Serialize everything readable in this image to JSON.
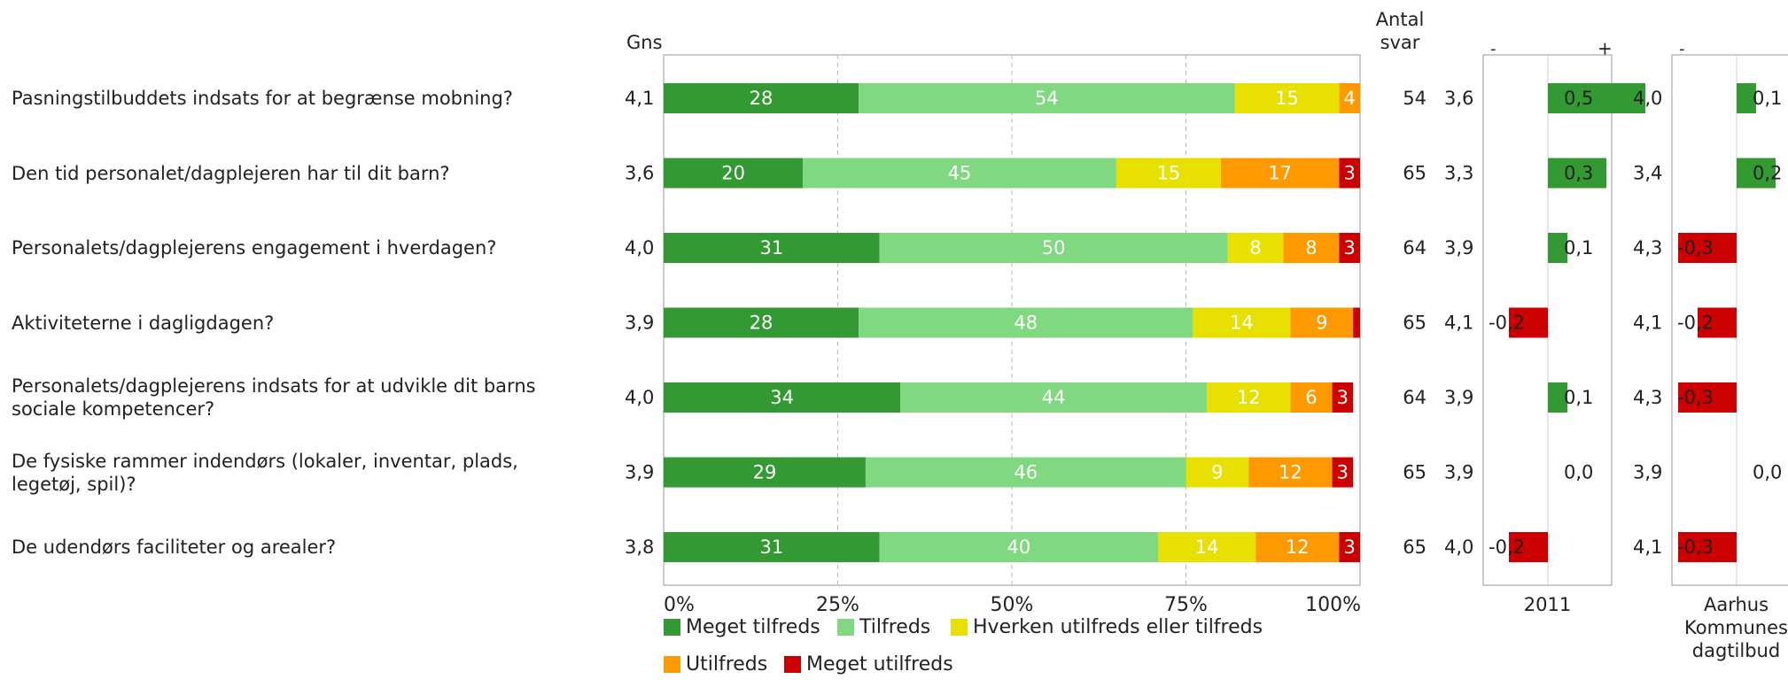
{
  "header": {
    "mean_label": "Gns",
    "count_label_1": "Antal",
    "count_label_2": "svar"
  },
  "questions": [
    "Pasningstilbuddets indsats for at begrænse mobning?",
    "Den tid personalet/dagplejeren har til dit barn?",
    "Personalets/dagplejerens engagement i hverdagen?",
    "Aktiviteterne i dagligdagen?",
    "Personalets/dagplejerens indsats for at udvikle dit barns sociale kompetencer?",
    "De fysiske rammer indendørs (lokaler, inventar, plads, legetøj, spil)?",
    "De udendørs faciliteter og arealer?"
  ],
  "chart_data": {
    "type": "bar",
    "stacked": true,
    "orientation": "horizontal",
    "categories": [
      "Pasningstilbuddets indsats for at begrænse mobning?",
      "Den tid personalet/dagplejeren har til dit barn?",
      "Personalets/dagplejerens engagement i hverdagen?",
      "Aktiviteterne i dagligdagen?",
      "Personalets/dagplejerens indsats for at udvikle dit barns sociale kompetencer?",
      "De fysiske rammer indendørs (lokaler, inventar, plads, legetøj, spil)?",
      "De udendørs faciliteter og arealer?"
    ],
    "series": [
      {
        "name": "Meget tilfreds",
        "color": "#339933",
        "values": [
          28,
          20,
          31,
          28,
          34,
          29,
          31
        ]
      },
      {
        "name": "Tilfreds",
        "color": "#80d880",
        "values": [
          54,
          45,
          50,
          48,
          44,
          46,
          40
        ]
      },
      {
        "name": "Hverken utilfreds eller tilfreds",
        "color": "#e8e000",
        "values": [
          15,
          15,
          8,
          14,
          12,
          9,
          14
        ]
      },
      {
        "name": "Utilfreds",
        "color": "#ff9900",
        "values": [
          4,
          17,
          8,
          9,
          6,
          12,
          12
        ]
      },
      {
        "name": "Meget utilfreds",
        "color": "#cc0000",
        "values": [
          0,
          3,
          3,
          2,
          3,
          3,
          3
        ]
      }
    ],
    "data_labels": [
      [
        "28",
        "54",
        "15",
        "4",
        ""
      ],
      [
        "20",
        "45",
        "15",
        "17",
        "3"
      ],
      [
        "31",
        "50",
        "8",
        "8",
        "3"
      ],
      [
        "28",
        "48",
        "14",
        "9",
        ""
      ],
      [
        "34",
        "44",
        "12",
        "6",
        "3"
      ],
      [
        "29",
        "46",
        "9",
        "12",
        "3"
      ],
      [
        "31",
        "40",
        "14",
        "12",
        "3"
      ]
    ],
    "x_ticks": [
      "0%",
      "25%",
      "50%",
      "75%",
      "100%"
    ],
    "xlim": [
      0,
      100
    ],
    "grid": true,
    "mean": [
      "4,1",
      "3,6",
      "4,0",
      "3,9",
      "4,0",
      "3,9",
      "3,8"
    ],
    "count": [
      "54",
      "65",
      "64",
      "65",
      "64",
      "65",
      "65"
    ],
    "legend_position": "bottom",
    "comparisons": [
      {
        "label_lines": [
          "2011"
        ],
        "minus": "-",
        "plus": "+",
        "means": [
          "3,6",
          "3,3",
          "3,9",
          "4,1",
          "3,9",
          "3,9",
          "4,0"
        ],
        "diffs": [
          0.5,
          0.3,
          0.1,
          -0.2,
          0.1,
          0.0,
          -0.2
        ],
        "diff_labels": [
          "0,5",
          "0,3",
          "0,1",
          "-0,2",
          "0,1",
          "0,0",
          "-0,2"
        ]
      },
      {
        "label_lines": [
          "Aarhus",
          "Kommunes",
          "dagtilbud"
        ],
        "minus": "-",
        "plus": "",
        "means": [
          "4,0",
          "3,4",
          "4,3",
          "4,1",
          "4,3",
          "3,9",
          "4,1"
        ],
        "diffs": [
          0.1,
          0.2,
          -0.3,
          -0.2,
          -0.3,
          0.0,
          -0.3
        ],
        "diff_labels": [
          "0,1",
          "0,2",
          "-0,3",
          "-0,2",
          "-0,3",
          "0,0",
          "-0,3"
        ]
      }
    ]
  }
}
